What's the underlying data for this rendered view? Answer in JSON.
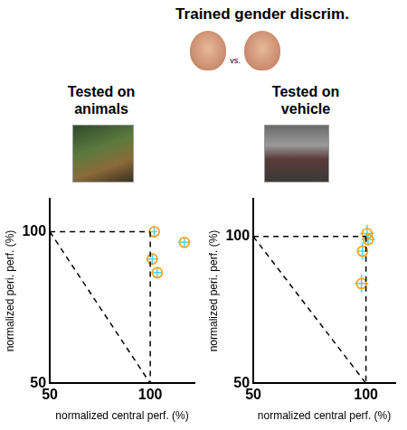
{
  "title": "Trained gender discrim.",
  "icon_text": "vs.",
  "chart_data": [
    {
      "type": "scatter",
      "title": "Tested on animals",
      "x_label": "normalized central perf. (%)",
      "y_label": "normalized peri. perf. (%)",
      "x": [
        102,
        101,
        103.5,
        117
      ],
      "values": [
        100,
        91,
        86.5,
        96.5
      ],
      "xerr": [
        1.5,
        3,
        2,
        3
      ],
      "yerr": [
        2,
        2,
        2,
        1.5
      ],
      "color": "#f5a623",
      "marker": "circle",
      "lines": [
        {
          "x": [
            50,
            100
          ],
          "y": [
            100,
            100
          ],
          "line_style": "dashed"
        },
        {
          "x": [
            100,
            100
          ],
          "y": [
            100,
            50
          ],
          "line_style": "dashed"
        },
        {
          "x": [
            50,
            100
          ],
          "y": [
            100,
            50
          ],
          "line_style": "dashed"
        }
      ],
      "xlim": [
        50,
        122
      ],
      "ylim": [
        50,
        111
      ],
      "xticks": [
        50,
        100
      ],
      "yticks": [
        50,
        100
      ],
      "grid": false
    },
    {
      "type": "scatter",
      "title": "Tested on vehicle",
      "x_label": "normalized central perf. (%)",
      "y_label": "normalized peri. perf. (%)",
      "x": [
        100.5,
        101,
        98.5,
        98
      ],
      "values": [
        101,
        99,
        95,
        84
      ],
      "xerr": [
        3,
        3,
        2,
        3
      ],
      "yerr": [
        3,
        2,
        3,
        3
      ],
      "color": "#f5a623",
      "marker": "circle",
      "lines": [
        {
          "x": [
            50,
            100
          ],
          "y": [
            100,
            100
          ],
          "line_style": "dashed"
        },
        {
          "x": [
            100,
            100
          ],
          "y": [
            100,
            50
          ],
          "line_style": "dashed"
        },
        {
          "x": [
            50,
            100
          ],
          "y": [
            100,
            50
          ],
          "line_style": "dashed"
        }
      ],
      "xlim": [
        50,
        113
      ],
      "ylim": [
        50,
        113
      ],
      "xticks": [
        50,
        100
      ],
      "yticks": [
        50,
        100
      ],
      "grid": false
    }
  ]
}
